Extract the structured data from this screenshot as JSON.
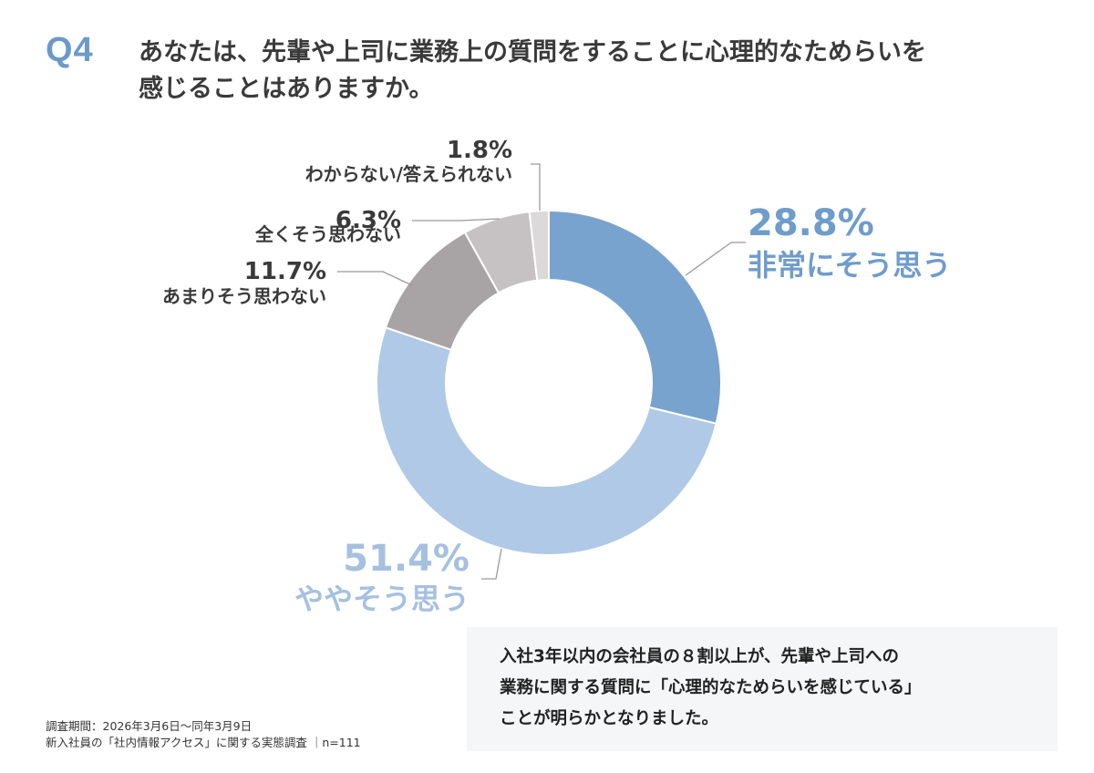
{
  "question": {
    "number": "Q4",
    "line1": "あなたは、先輩や上司に業務上の質問をすることに心理的なためらいを",
    "line2": "感じることはありますか。"
  },
  "chart_data": {
    "type": "pie",
    "donut": true,
    "slices": [
      {
        "label": "非常にそう思う",
        "percent_label": "28.8%",
        "value": 28.8,
        "color": "#78a3cf",
        "label_color": "#6f9ccb"
      },
      {
        "label": "ややそう思う",
        "percent_label": "51.4%",
        "value": 51.4,
        "color": "#b0c9e6",
        "label_color": "#a6c0e0"
      },
      {
        "label": "あまりそう思わない",
        "percent_label": "11.7%",
        "value": 11.7,
        "color": "#a8a4a5",
        "label_color": "#3a3a3a"
      },
      {
        "label": "全くそう思わない",
        "percent_label": "6.3%",
        "value": 6.3,
        "color": "#c6c2c3",
        "label_color": "#3a3a3a"
      },
      {
        "label": "わからない/答えられない",
        "percent_label": "1.8%",
        "value": 1.8,
        "color": "#dcd9da",
        "label_color": "#3a3a3a"
      }
    ]
  },
  "summary": {
    "line1": "入社3年以内の会社員の８割以上が、先輩や上司への",
    "line2": "業務に関する質問に「心理的なためらいを感じている」",
    "line3": "ことが明らかとなりました。"
  },
  "footnote": {
    "line1": "調査期間：2026年3月6日～同年3月9日",
    "line2": "新入社員の「社内情報アクセス」に関する実態調査 ｜n=111"
  }
}
